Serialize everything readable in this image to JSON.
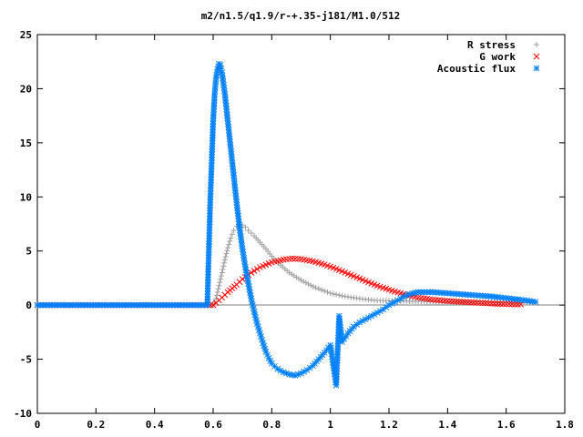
{
  "chart_data": {
    "type": "scatter",
    "title": "m2/n1.5/q1.9/r-+.35-j181/M1.0/512",
    "xlabel": "",
    "ylabel": "",
    "xlim": [
      0,
      1.8
    ],
    "ylim": [
      -10,
      25
    ],
    "x_ticks": [
      "0",
      "0.2",
      "0.4",
      "0.6",
      "0.8",
      "1",
      "1.2",
      "1.4",
      "1.6",
      "1.8"
    ],
    "y_ticks": [
      "-10",
      "-5",
      "0",
      "5",
      "10",
      "15",
      "20",
      "25"
    ],
    "grid": false,
    "legend_position": "top-right",
    "series": [
      {
        "name": "R stress",
        "marker": "plus",
        "color": "#a0a0a0",
        "points": [
          [
            0,
            0
          ],
          [
            0.1,
            0
          ],
          [
            0.2,
            0
          ],
          [
            0.3,
            0
          ],
          [
            0.4,
            0
          ],
          [
            0.5,
            0
          ],
          [
            0.6,
            0
          ],
          [
            0.61,
            0.6
          ],
          [
            0.62,
            1.8
          ],
          [
            0.63,
            3.0
          ],
          [
            0.64,
            4.2
          ],
          [
            0.65,
            5.3
          ],
          [
            0.66,
            6.2
          ],
          [
            0.67,
            6.9
          ],
          [
            0.68,
            7.3
          ],
          [
            0.69,
            7.45
          ],
          [
            0.7,
            7.4
          ],
          [
            0.71,
            7.2
          ],
          [
            0.72,
            6.9
          ],
          [
            0.74,
            6.4
          ],
          [
            0.76,
            5.8
          ],
          [
            0.78,
            5.2
          ],
          [
            0.8,
            4.5
          ],
          [
            0.83,
            3.7
          ],
          [
            0.86,
            3.0
          ],
          [
            0.9,
            2.3
          ],
          [
            0.95,
            1.6
          ],
          [
            1.0,
            1.1
          ],
          [
            1.05,
            0.8
          ],
          [
            1.1,
            0.6
          ],
          [
            1.15,
            0.45
          ],
          [
            1.2,
            0.4
          ],
          [
            1.3,
            0.35
          ],
          [
            1.4,
            0.3
          ],
          [
            1.5,
            0.28
          ],
          [
            1.6,
            0.25
          ],
          [
            1.7,
            0.22
          ]
        ]
      },
      {
        "name": "G work",
        "marker": "cross",
        "color": "#ff0000",
        "points": [
          [
            0,
            0
          ],
          [
            0.1,
            0
          ],
          [
            0.2,
            0
          ],
          [
            0.3,
            0
          ],
          [
            0.4,
            0
          ],
          [
            0.5,
            0
          ],
          [
            0.6,
            0
          ],
          [
            0.61,
            0.2
          ],
          [
            0.63,
            0.7
          ],
          [
            0.65,
            1.2
          ],
          [
            0.68,
            1.9
          ],
          [
            0.7,
            2.4
          ],
          [
            0.73,
            3.0
          ],
          [
            0.76,
            3.5
          ],
          [
            0.8,
            3.95
          ],
          [
            0.84,
            4.2
          ],
          [
            0.87,
            4.3
          ],
          [
            0.9,
            4.25
          ],
          [
            0.94,
            4.05
          ],
          [
            0.98,
            3.75
          ],
          [
            1.02,
            3.35
          ],
          [
            1.06,
            2.9
          ],
          [
            1.1,
            2.45
          ],
          [
            1.14,
            2.0
          ],
          [
            1.18,
            1.6
          ],
          [
            1.22,
            1.25
          ],
          [
            1.26,
            0.95
          ],
          [
            1.3,
            0.7
          ],
          [
            1.35,
            0.5
          ],
          [
            1.4,
            0.38
          ],
          [
            1.45,
            0.3
          ],
          [
            1.5,
            0.22
          ],
          [
            1.55,
            0.15
          ],
          [
            1.6,
            0.1
          ],
          [
            1.65,
            0.06
          ]
        ]
      },
      {
        "name": "Acoustic flux",
        "marker": "star",
        "color": "#0080ff",
        "points": [
          [
            0,
            0
          ],
          [
            0.1,
            0
          ],
          [
            0.2,
            0
          ],
          [
            0.3,
            0
          ],
          [
            0.4,
            0
          ],
          [
            0.5,
            0
          ],
          [
            0.58,
            0
          ],
          [
            0.59,
            9.5
          ],
          [
            0.6,
            17.0
          ],
          [
            0.605,
            19.5
          ],
          [
            0.61,
            21.0
          ],
          [
            0.615,
            21.8
          ],
          [
            0.62,
            22.3
          ],
          [
            0.625,
            22.2
          ],
          [
            0.63,
            21.5
          ],
          [
            0.64,
            19.5
          ],
          [
            0.65,
            17.0
          ],
          [
            0.66,
            14.5
          ],
          [
            0.67,
            12.0
          ],
          [
            0.68,
            9.5
          ],
          [
            0.69,
            7.2
          ],
          [
            0.7,
            5.2
          ],
          [
            0.71,
            3.5
          ],
          [
            0.72,
            2.0
          ],
          [
            0.73,
            0.6
          ],
          [
            0.74,
            -0.6
          ],
          [
            0.75,
            -1.7
          ],
          [
            0.76,
            -2.6
          ],
          [
            0.77,
            -3.5
          ],
          [
            0.78,
            -4.3
          ],
          [
            0.79,
            -4.9
          ],
          [
            0.8,
            -5.4
          ],
          [
            0.82,
            -5.9
          ],
          [
            0.84,
            -6.2
          ],
          [
            0.86,
            -6.4
          ],
          [
            0.88,
            -6.5
          ],
          [
            0.9,
            -6.3
          ],
          [
            0.92,
            -6.0
          ],
          [
            0.94,
            -5.6
          ],
          [
            0.96,
            -5.0
          ],
          [
            0.98,
            -4.4
          ],
          [
            1.0,
            -3.7
          ],
          [
            1.02,
            -7.4
          ],
          [
            1.03,
            -1.0
          ],
          [
            1.04,
            -3.4
          ],
          [
            1.06,
            -2.6
          ],
          [
            1.08,
            -2.0
          ],
          [
            1.1,
            -1.6
          ],
          [
            1.12,
            -1.3
          ],
          [
            1.14,
            -1.0
          ],
          [
            1.16,
            -0.7
          ],
          [
            1.18,
            -0.4
          ],
          [
            1.2,
            0.0
          ],
          [
            1.22,
            0.3
          ],
          [
            1.24,
            0.6
          ],
          [
            1.26,
            0.9
          ],
          [
            1.28,
            1.1
          ],
          [
            1.3,
            1.2
          ],
          [
            1.35,
            1.2
          ],
          [
            1.4,
            1.1
          ],
          [
            1.45,
            1.0
          ],
          [
            1.5,
            0.9
          ],
          [
            1.55,
            0.8
          ],
          [
            1.6,
            0.65
          ],
          [
            1.65,
            0.5
          ],
          [
            1.7,
            0.3
          ]
        ]
      }
    ]
  }
}
